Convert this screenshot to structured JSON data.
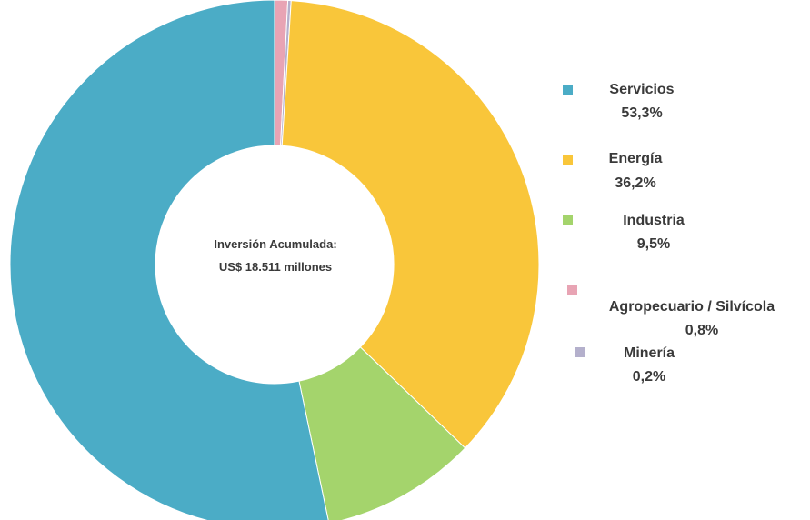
{
  "chart_data": {
    "type": "pie",
    "style": "donut",
    "center_label": [
      "Inversión Acumulada:",
      "US$ 18.511 millones"
    ],
    "legend_placement": "right",
    "slices": [
      {
        "label": "Servicios",
        "value": 53.3,
        "value_label": "53,3%",
        "color": "#4bacc6"
      },
      {
        "label": "Energía",
        "value": 36.2,
        "value_label": "36,2%",
        "color": "#f9c63a"
      },
      {
        "label": "Industria",
        "value": 9.5,
        "value_label": "9,5%",
        "color": "#a4d46c"
      },
      {
        "label": "Agropecuario / Silvícola",
        "value": 0.8,
        "value_label": "0,8%",
        "color": "#e8a4b4"
      },
      {
        "label": "Minería",
        "value": 0.2,
        "value_label": "0,2%",
        "color": "#b4b0cc"
      }
    ],
    "draw_order": [
      3,
      4,
      1,
      2,
      0
    ]
  }
}
